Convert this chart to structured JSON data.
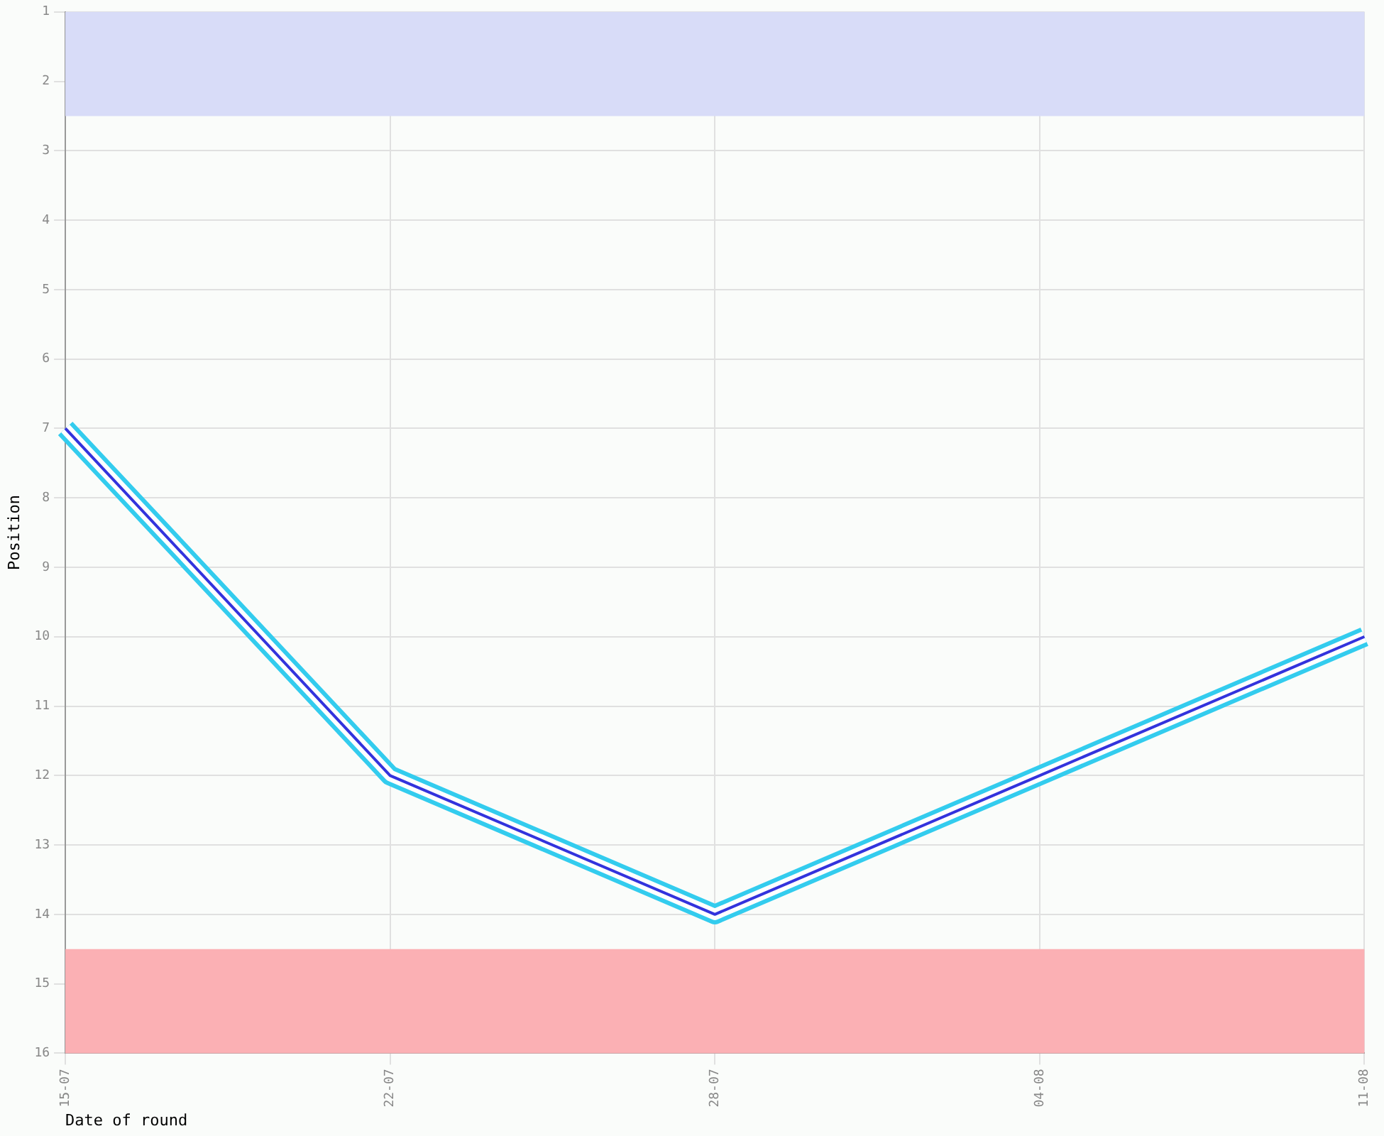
{
  "chart_data": {
    "type": "line",
    "xlabel": "Date of round",
    "ylabel": "Position",
    "categories": [
      "15-07",
      "22-07",
      "28-07",
      "04-08",
      "11-08"
    ],
    "series": [
      {
        "color": "#3333dd",
        "values": [
          7,
          12,
          14,
          12,
          10
        ]
      }
    ],
    "ylim": [
      16,
      1
    ],
    "yticks": [
      1,
      2,
      3,
      4,
      5,
      6,
      7,
      8,
      9,
      10,
      11,
      12,
      13,
      14,
      15,
      16
    ],
    "bands": [
      {
        "axis": "y",
        "from": 1,
        "to": 2.5,
        "color": "#d8dcf8"
      },
      {
        "axis": "y",
        "from": 14.5,
        "to": 16,
        "color": "#fbb0b4"
      }
    ],
    "grid": true,
    "legend": false,
    "marker": "none",
    "line_style": "solid"
  }
}
